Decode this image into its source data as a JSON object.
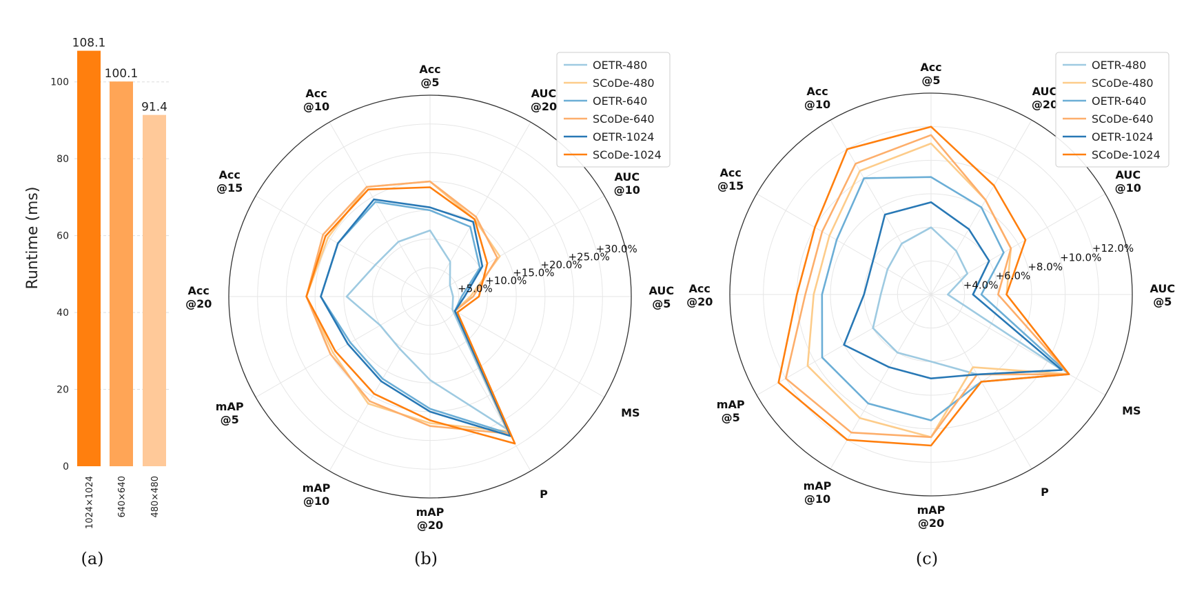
{
  "chart_data": [
    {
      "panel": "(a)",
      "type": "bar",
      "ylabel": "Runtime (ms)",
      "categories": [
        "1024×1024",
        "640×640",
        "480×480"
      ],
      "values": [
        108.1,
        100.1,
        91.4
      ],
      "value_labels": [
        "108.1",
        "100.1",
        "91.4"
      ],
      "colors": [
        "#ff7f0e",
        "#ffa556",
        "#ffc999"
      ],
      "ylim": [
        0,
        110
      ],
      "yticks": [
        0,
        20,
        40,
        60,
        80,
        100
      ],
      "ytick_labels": [
        "0",
        "20",
        "40",
        "60",
        "80",
        "100"
      ]
    },
    {
      "panel": "(b)",
      "type": "radar",
      "axes": [
        [
          "AUC",
          "@5"
        ],
        [
          "AUC",
          "@10"
        ],
        [
          "AUC",
          "@20"
        ],
        [
          "Acc",
          "@5"
        ],
        [
          "Acc",
          "@10"
        ],
        [
          "Acc",
          "@15"
        ],
        [
          "Acc",
          "@20"
        ],
        [
          "mAP",
          "@5"
        ],
        [
          "mAP",
          "@10"
        ],
        [
          "mAP",
          "@20"
        ],
        [
          "P"
        ],
        [
          "MS"
        ]
      ],
      "rlim": [
        0,
        35
      ],
      "rticks": [
        5,
        10,
        15,
        20,
        25,
        30
      ],
      "rtick_labels": [
        "+5.0%",
        "+10.0%",
        "+15.0%",
        "+20.0%",
        "+25.0%",
        "+30.0%"
      ],
      "series": [
        {
          "name": "OETR-480",
          "color": "#9ecae1",
          "values": [
            4.0,
            4.0,
            7.0,
            11.5,
            11.0,
            11.0,
            14.5,
            10.0,
            10.5,
            14.5,
            26.5,
            4.5
          ]
        },
        {
          "name": "SCoDe-480",
          "color": "#fdcc8a",
          "values": [
            7.0,
            14.0,
            15.5,
            20.0,
            22.0,
            20.5,
            21.5,
            19.5,
            21.5,
            22.0,
            27.0,
            5.0
          ]
        },
        {
          "name": "OETR-640",
          "color": "#6baed6",
          "values": [
            5.5,
            10.0,
            14.0,
            15.0,
            19.0,
            18.5,
            19.0,
            16.0,
            16.5,
            19.5,
            27.5,
            5.0
          ]
        },
        {
          "name": "SCoDe-640",
          "color": "#fdae6b",
          "values": [
            7.5,
            13.5,
            16.0,
            20.0,
            22.0,
            21.5,
            21.5,
            20.0,
            21.0,
            22.5,
            27.5,
            5.0
          ]
        },
        {
          "name": "OETR-1024",
          "color": "#2878b5",
          "values": [
            6.0,
            10.5,
            15.0,
            15.5,
            19.5,
            18.5,
            19.0,
            16.5,
            17.0,
            20.0,
            28.0,
            5.0
          ]
        },
        {
          "name": "SCoDe-1024",
          "color": "#ff7f0e",
          "values": [
            8.5,
            11.5,
            15.5,
            19.0,
            21.5,
            21.0,
            21.5,
            19.0,
            19.5,
            21.5,
            29.5,
            5.5
          ]
        }
      ],
      "legend_position": "top-right"
    },
    {
      "panel": "(c)",
      "type": "radar",
      "axes": [
        [
          "AUC",
          "@5"
        ],
        [
          "AUC",
          "@10"
        ],
        [
          "AUC",
          "@20"
        ],
        [
          "Acc",
          "@5"
        ],
        [
          "Acc",
          "@10"
        ],
        [
          "Acc",
          "@15"
        ],
        [
          "Acc",
          "@20"
        ],
        [
          "mAP",
          "@5"
        ],
        [
          "mAP",
          "@10"
        ],
        [
          "mAP",
          "@20"
        ],
        [
          "P"
        ],
        [
          "MS"
        ]
      ],
      "rlim": [
        2,
        14
      ],
      "rticks": [
        4,
        6,
        8,
        10,
        12
      ],
      "rtick_labels": [
        "+4.0%",
        "+6.0%",
        "+8.0%",
        "+10.0%",
        "+12.0%"
      ],
      "series": [
        {
          "name": "OETR-480",
          "color": "#9ecae1",
          "values": [
            3.0,
            4.5,
            5.0,
            6.0,
            5.5,
            5.0,
            5.0,
            6.0,
            6.0,
            6.0,
            7.5,
            11.0
          ]
        },
        {
          "name": "SCoDe-480",
          "color": "#fdcc8a",
          "values": [
            6.5,
            7.5,
            8.5,
            11.0,
            10.5,
            9.0,
            9.0,
            10.5,
            10.5,
            10.5,
            7.0,
            11.5
          ]
        },
        {
          "name": "OETR-640",
          "color": "#6baed6",
          "values": [
            5.0,
            7.0,
            8.0,
            9.0,
            10.0,
            8.5,
            8.5,
            9.5,
            9.5,
            9.5,
            8.0,
            11.5
          ]
        },
        {
          "name": "SCoDe-640",
          "color": "#fdae6b",
          "values": [
            6.0,
            7.5,
            8.5,
            11.5,
            11.0,
            9.5,
            9.5,
            12.0,
            11.5,
            10.5,
            7.5,
            11.5
          ]
        },
        {
          "name": "OETR-1024",
          "color": "#2878b5",
          "values": [
            4.5,
            6.0,
            6.5,
            7.5,
            7.5,
            6.0,
            6.0,
            8.0,
            7.0,
            7.0,
            7.5,
            11.0
          ]
        },
        {
          "name": "SCoDe-1024",
          "color": "#ff7f0e",
          "values": [
            6.5,
            8.5,
            9.5,
            12.0,
            12.0,
            10.0,
            10.0,
            12.5,
            12.0,
            11.0,
            8.0,
            11.5
          ]
        }
      ],
      "legend_position": "top-right"
    }
  ],
  "captions": [
    "(a)",
    "(b)",
    "(c)"
  ]
}
